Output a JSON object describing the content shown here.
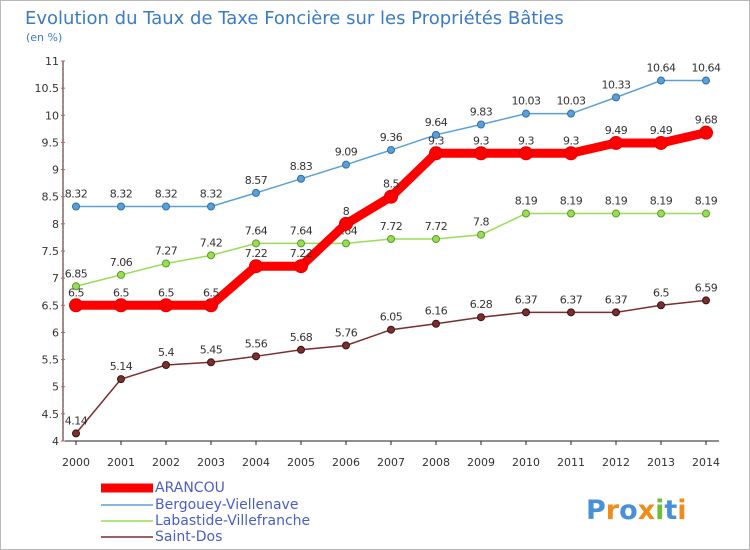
{
  "chart_data": {
    "type": "line",
    "title": "Evolution du Taux de Taxe Foncière sur les Propriétés Bâties",
    "subtitle": "(en %)",
    "xlabel": "",
    "ylabel": "",
    "categories": [
      "2000",
      "2001",
      "2002",
      "2003",
      "2004",
      "2005",
      "2006",
      "2007",
      "2008",
      "2009",
      "2010",
      "2011",
      "2012",
      "2013",
      "2014"
    ],
    "ylim": [
      4,
      11
    ],
    "yticks": [
      4,
      4.5,
      5,
      5.5,
      6,
      6.5,
      7,
      7.5,
      8,
      8.5,
      9,
      9.5,
      10,
      10.5,
      11
    ],
    "ytick_labels": [
      "4",
      "4.5",
      "5",
      "5.5",
      "6",
      "6.5",
      "7",
      "7.5",
      "8",
      "8.5",
      "9",
      "9.5",
      "10",
      "10.5",
      "11"
    ],
    "grid": false,
    "legend_position": "bottom-left",
    "series": [
      {
        "name": "ARANCOU",
        "color": "#ff0000",
        "values": [
          6.5,
          6.5,
          6.5,
          6.5,
          7.22,
          7.22,
          8,
          8.5,
          9.3,
          9.3,
          9.3,
          9.3,
          9.49,
          9.49,
          9.68
        ],
        "labels": [
          "6.5",
          "6.5",
          "6.5",
          "6.5",
          "7.22",
          "7.22",
          "8",
          "8.5",
          "9.3",
          "9.3",
          "9.3",
          "9.3",
          "9.49",
          "9.49",
          "9.68"
        ]
      },
      {
        "name": "Bergouey-Viellenave",
        "color": "#5aa0d7",
        "values": [
          8.32,
          8.32,
          8.32,
          8.32,
          8.57,
          8.83,
          9.09,
          9.36,
          9.64,
          9.83,
          10.03,
          10.03,
          10.33,
          10.64,
          10.64
        ],
        "labels": [
          "8.32",
          "8.32",
          "8.32",
          "8.32",
          "8.57",
          "8.83",
          "9.09",
          "9.36",
          "9.64",
          "9.83",
          "10.03",
          "10.03",
          "10.33",
          "10.64",
          "10.64"
        ]
      },
      {
        "name": "Labastide-Villefranche",
        "color": "#99dd55",
        "values": [
          6.85,
          7.06,
          7.27,
          7.42,
          7.64,
          7.64,
          7.64,
          7.72,
          7.72,
          7.8,
          8.19,
          8.19,
          8.19,
          8.19,
          8.19
        ],
        "labels": [
          "6.85",
          "7.06",
          "7.27",
          "7.42",
          "7.64",
          "7.64",
          "7.64",
          "7.72",
          "7.72",
          "7.8",
          "8.19",
          "8.19",
          "8.19",
          "8.19",
          "8.19"
        ]
      },
      {
        "name": "Saint-Dos",
        "color": "#7a2e2e",
        "values": [
          4.14,
          5.14,
          5.4,
          5.45,
          5.56,
          5.68,
          5.76,
          6.05,
          6.16,
          6.28,
          6.37,
          6.37,
          6.37,
          6.5,
          6.59
        ],
        "labels": [
          "4.14",
          "5.14",
          "5.4",
          "5.45",
          "5.56",
          "5.68",
          "5.76",
          "6.05",
          "6.16",
          "6.28",
          "6.37",
          "6.37",
          "6.37",
          "6.5",
          "6.59"
        ]
      }
    ]
  },
  "logo": {
    "text": "Proxiti"
  }
}
